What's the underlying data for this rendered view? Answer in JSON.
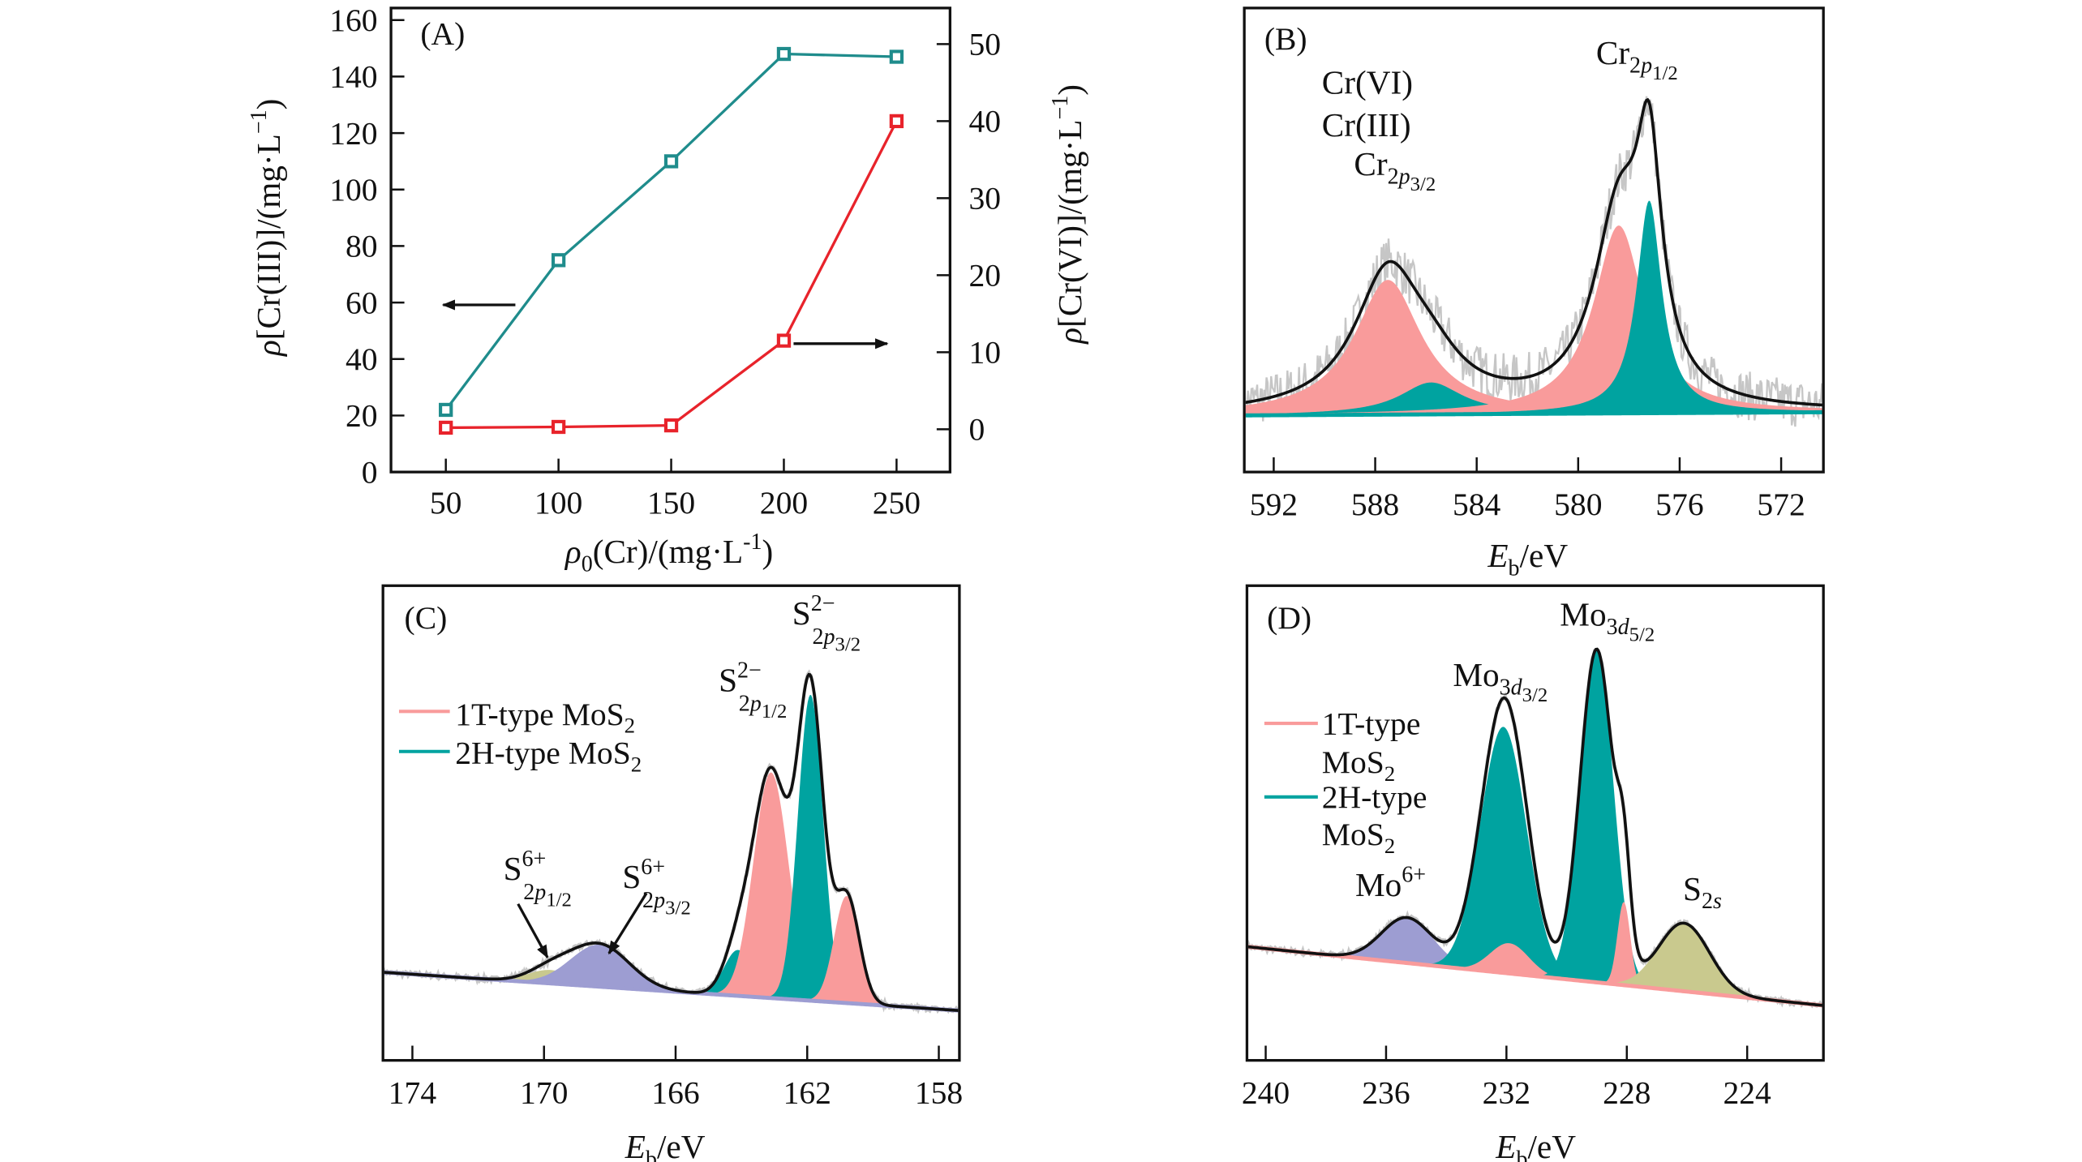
{
  "chart_data": [
    {
      "panel": "(A)",
      "type": "line",
      "x": [
        50,
        100,
        150,
        200,
        250
      ],
      "xticks": [
        50,
        100,
        150,
        200,
        250
      ],
      "xlabel": [
        {
          "t": "ρ",
          "s": "i"
        },
        {
          "t": "0",
          "s": "sub"
        },
        {
          "t": "(Cr)/(mg·L"
        },
        {
          "t": "-1",
          "s": "sup"
        },
        {
          "t": ")"
        }
      ],
      "ylabel_left": [
        {
          "t": "ρ",
          "s": "i"
        },
        {
          "t": "[Cr(III)]/(mg·L"
        },
        {
          "t": "−1",
          "s": "sup"
        },
        {
          "t": ")"
        }
      ],
      "ylabel_right": [
        {
          "t": "ρ",
          "s": "i"
        },
        {
          "t": "[Cr(VI)]/(mg·L"
        },
        {
          "t": "−1",
          "s": "sup"
        },
        {
          "t": ")"
        }
      ],
      "ylim_left": [
        0,
        160
      ],
      "yticks_left": [
        0,
        20,
        40,
        60,
        80,
        100,
        120,
        140,
        160
      ],
      "yticks_right": [
        0,
        10,
        20,
        30,
        40,
        50
      ],
      "series": [
        {
          "axis": "left",
          "color": "#1f8c8c",
          "marker": "open-square",
          "values": [
            22,
            75,
            110,
            148,
            147
          ]
        },
        {
          "axis": "right",
          "color": "#e8232b",
          "marker": "open-square",
          "values": [
            0.2,
            0.3,
            0.5,
            11.5,
            40
          ]
        }
      ],
      "annotations": [
        {
          "type": "arrow",
          "direction": "left",
          "meaning": "left-axis series"
        },
        {
          "type": "arrow",
          "direction": "right",
          "meaning": "right-axis series"
        }
      ],
      "grid": false
    },
    {
      "panel": "(B)",
      "type": "area",
      "xlim": [
        593.2,
        570.3
      ],
      "xticks": [
        592,
        588,
        584,
        580,
        576,
        572
      ],
      "xlabel": [
        {
          "t": "E",
          "s": "i"
        },
        {
          "t": "b",
          "s": "sub"
        },
        {
          "t": "/eV"
        }
      ],
      "lineshape": "lorentzian",
      "background": [
        [
          593.2,
          7.3
        ],
        [
          570.3,
          8.2
        ]
      ],
      "raw_data_color": "#c6c6c6",
      "envelope_color": "#111111",
      "components": [
        {
          "center": 587.5,
          "fwhm": 3.2,
          "height": 38,
          "color": "#f99b9b"
        },
        {
          "center": 585.8,
          "fwhm": 3.0,
          "height": 9,
          "color": "#00a3a0"
        },
        {
          "center": 578.4,
          "fwhm": 2.4,
          "height": 53,
          "color": "#f99b9b"
        },
        {
          "center": 577.2,
          "fwhm": 1.2,
          "height": 60,
          "color": "#00a3a0"
        }
      ],
      "labels": [
        [
          {
            "t": "Cr(VI)"
          }
        ],
        [
          {
            "t": "Cr(III)"
          }
        ],
        [
          {
            "t": "Cr"
          },
          {
            "t": "2",
            "s": "sub"
          },
          {
            "t": "p",
            "s": "subi"
          },
          {
            "t": "3/2",
            "s": "subsub"
          }
        ],
        [
          {
            "t": "Cr"
          },
          {
            "t": "2",
            "s": "sub"
          },
          {
            "t": "p",
            "s": "subi"
          },
          {
            "t": "1/2",
            "s": "subsub"
          }
        ]
      ],
      "grid": false
    },
    {
      "panel": "(C)",
      "type": "area",
      "xlim": [
        174.9,
        157.4
      ],
      "xticks": [
        174,
        170,
        166,
        162,
        158
      ],
      "xlabel": [
        {
          "t": "E",
          "s": "i"
        },
        {
          "t": "b",
          "s": "sub"
        },
        {
          "t": "/eV"
        }
      ],
      "lineshape": "gaussian",
      "background": [
        [
          174.9,
          15
        ],
        [
          157.4,
          5
        ]
      ],
      "envelope_color": "#111111",
      "legend": [
        {
          "name": [
            {
              "t": "1T-type MoS"
            },
            {
              "t": "2",
              "s": "sub"
            }
          ],
          "color": "#f99b9b"
        },
        {
          "name": [
            {
              "t": "2H-type MoS"
            },
            {
              "t": "2",
              "s": "sub"
            }
          ],
          "color": "#00a3a0"
        }
      ],
      "legend_position": "upper-left",
      "components": [
        {
          "center": 169.8,
          "fwhm": 1.6,
          "height": 3.5,
          "color": "#c9c98e"
        },
        {
          "center": 168.3,
          "fwhm": 2.1,
          "height": 11,
          "color": "#9d9dd2"
        },
        {
          "center": 164.1,
          "fwhm": 1.0,
          "height": 12,
          "color": "#00a3a0"
        },
        {
          "center": 163.1,
          "fwhm": 1.25,
          "height": 59,
          "color": "#f99b9b"
        },
        {
          "center": 161.9,
          "fwhm": 0.9,
          "height": 80,
          "color": "#00a3a0"
        },
        {
          "center": 160.8,
          "fwhm": 0.9,
          "height": 28,
          "color": "#f99b9b"
        }
      ],
      "labels": [
        [
          {
            "t": "S"
          },
          {
            "t": "2−",
            "s": "sup"
          },
          {
            "t": "2",
            "s": "subb"
          },
          {
            "t": "p",
            "s": "subbi"
          },
          {
            "t": "1/2",
            "s": "subsubb"
          }
        ],
        [
          {
            "t": "S"
          },
          {
            "t": "2−",
            "s": "sup"
          },
          {
            "t": "2",
            "s": "subb"
          },
          {
            "t": "p",
            "s": "subbi"
          },
          {
            "t": "3/2",
            "s": "subsubb"
          }
        ],
        [
          {
            "t": "S"
          },
          {
            "t": "6+",
            "s": "sup"
          },
          {
            "t": "2",
            "s": "subb"
          },
          {
            "t": "p",
            "s": "subbi"
          },
          {
            "t": "1/2",
            "s": "subsubb"
          }
        ],
        [
          {
            "t": "S"
          },
          {
            "t": "6+",
            "s": "sup"
          },
          {
            "t": "2",
            "s": "subb"
          },
          {
            "t": "p",
            "s": "subbi"
          },
          {
            "t": "3/2",
            "s": "subsubb"
          }
        ]
      ],
      "grid": false
    },
    {
      "panel": "(D)",
      "type": "area",
      "xlim": [
        240.6,
        221.5
      ],
      "xticks": [
        240,
        236,
        232,
        228,
        224
      ],
      "xlabel": [
        {
          "t": "E",
          "s": "i"
        },
        {
          "t": "b",
          "s": "sub"
        },
        {
          "t": "/eV"
        }
      ],
      "lineshape": "gaussian",
      "background": [
        [
          240.6,
          21.9
        ],
        [
          221.5,
          6.4
        ]
      ],
      "envelope_color": "#111111",
      "legend": [
        {
          "name": [
            {
              "t": "1T-type"
            }
          ],
          "name2": [
            {
              "t": "MoS"
            },
            {
              "t": "2",
              "s": "sub"
            }
          ],
          "color": "#f99b9b"
        },
        {
          "name": [
            {
              "t": "2H-type"
            }
          ],
          "name2": [
            {
              "t": "MoS"
            },
            {
              "t": "2",
              "s": "sub"
            }
          ],
          "color": "#00a3a0"
        }
      ],
      "legend_position": "left",
      "components": [
        {
          "center": 235.3,
          "fwhm": 2.0,
          "height": 12,
          "color": "#9d9dd2"
        },
        {
          "center": 232.1,
          "fwhm": 1.8,
          "height": 65,
          "color": "#00a3a0"
        },
        {
          "center": 231.9,
          "fwhm": 1.5,
          "height": 8,
          "color": "#f99b9b"
        },
        {
          "center": 229.0,
          "fwhm": 1.3,
          "height": 88,
          "color": "#00a3a0"
        },
        {
          "center": 228.1,
          "fwhm": 0.5,
          "height": 22,
          "color": "#f99b9b"
        },
        {
          "center": 226.1,
          "fwhm": 2.0,
          "height": 18,
          "color": "#c9c98e"
        }
      ],
      "labels": [
        [
          {
            "t": "Mo"
          },
          {
            "t": "3",
            "s": "sub"
          },
          {
            "t": "d",
            "s": "subi"
          },
          {
            "t": "3/2",
            "s": "subsub"
          }
        ],
        [
          {
            "t": "Mo"
          },
          {
            "t": "3",
            "s": "sub"
          },
          {
            "t": "d",
            "s": "subi"
          },
          {
            "t": "5/2",
            "s": "subsub"
          }
        ],
        [
          {
            "t": "Mo"
          },
          {
            "t": "6+",
            "s": "sup"
          }
        ],
        [
          {
            "t": "S"
          },
          {
            "t": "2",
            "s": "sub"
          },
          {
            "t": "s",
            "s": "subi"
          }
        ]
      ],
      "grid": false
    }
  ]
}
